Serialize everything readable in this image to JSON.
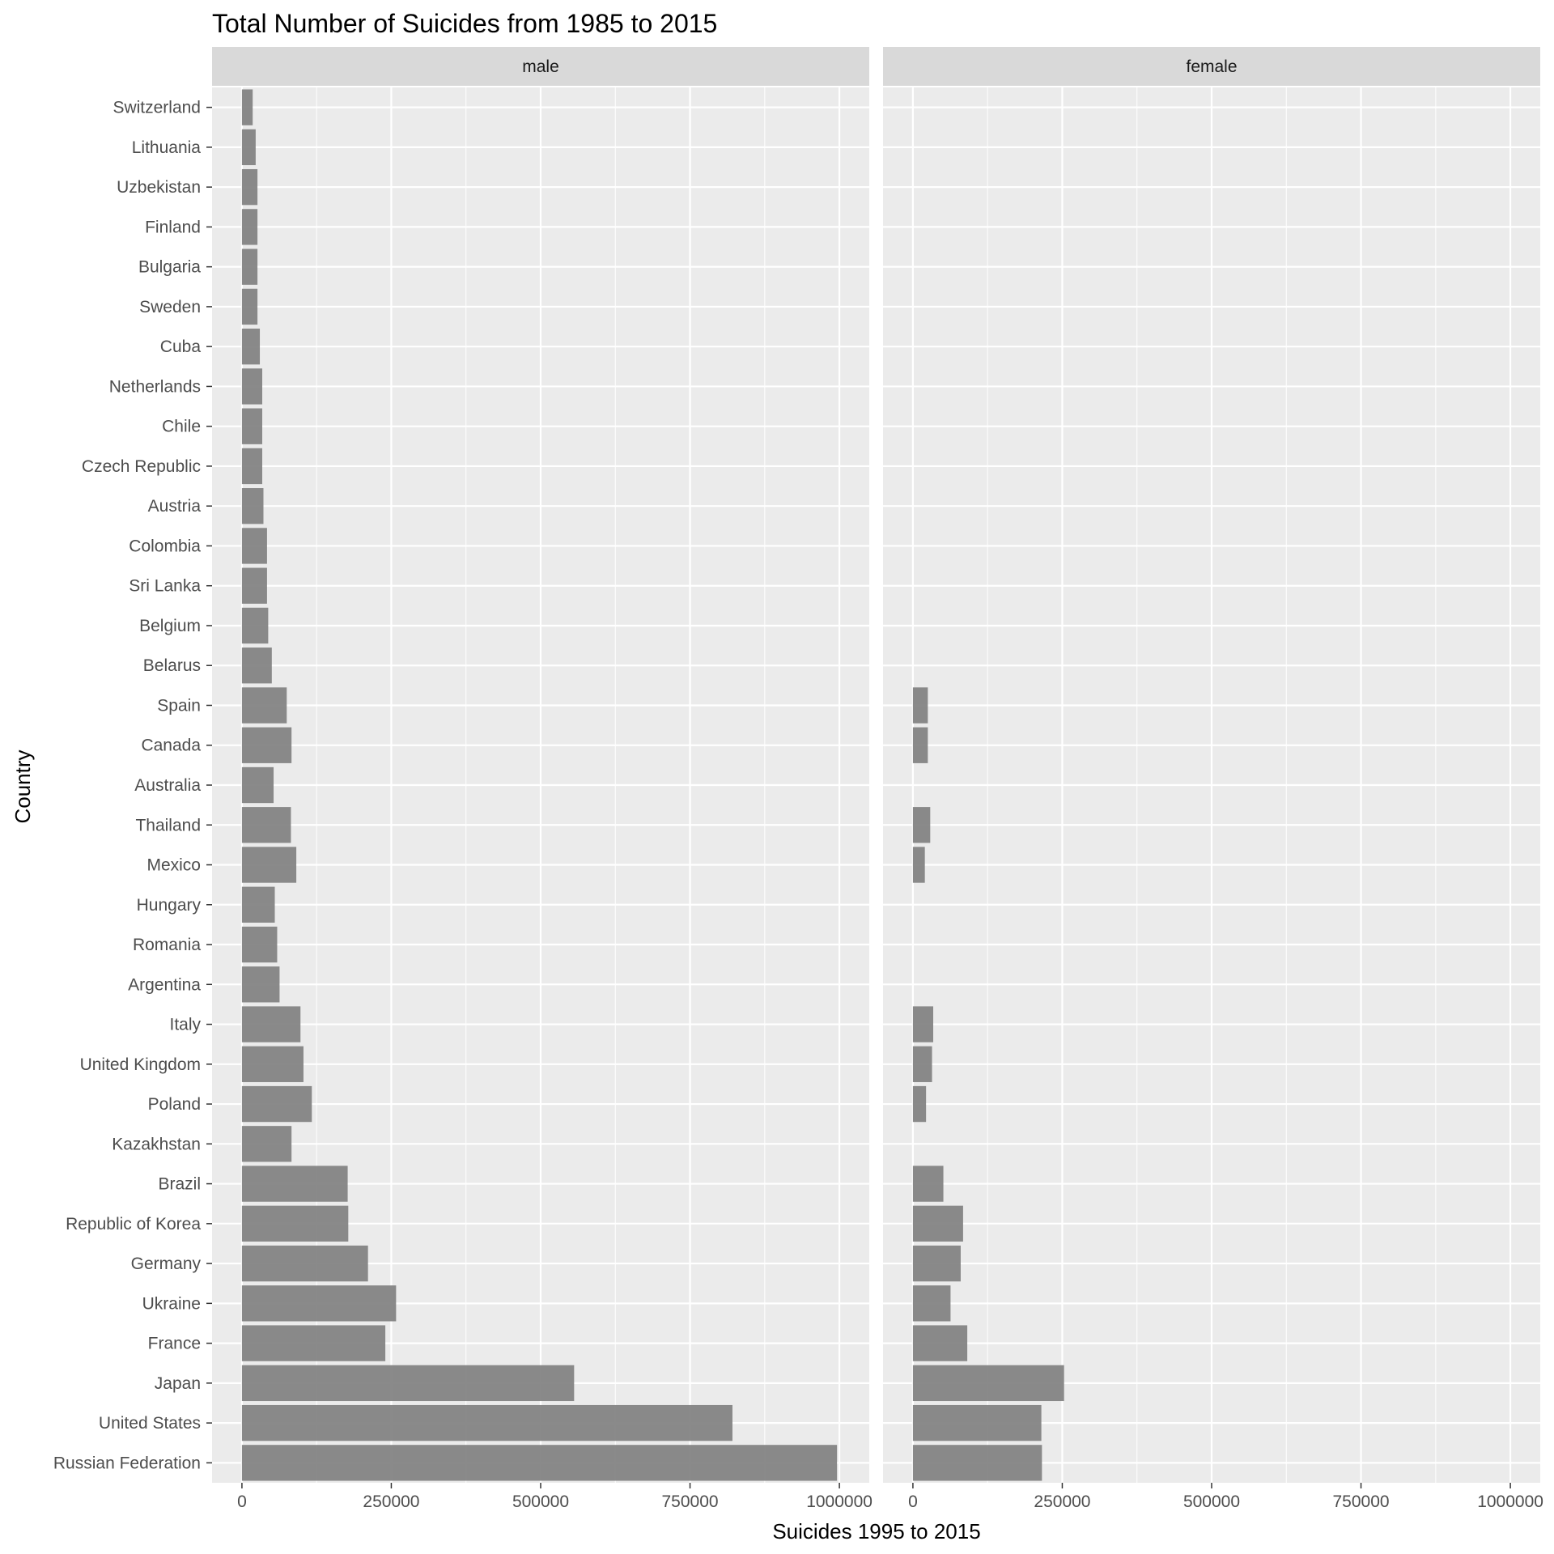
{
  "chart_data": {
    "type": "bar",
    "orientation": "horizontal",
    "title": "Total Number of Suicides from 1985 to 2015",
    "xlabel": "Suicides 1995 to 2015",
    "ylabel": "Country",
    "xlim": [
      -50000,
      1050000
    ],
    "x_ticks": [
      0,
      250000,
      500000,
      750000,
      1000000
    ],
    "x_tick_labels": [
      "0",
      "250000",
      "500000",
      "750000",
      "1000000"
    ],
    "grid": true,
    "categories": [
      "Switzerland",
      "Lithuania",
      "Uzbekistan",
      "Finland",
      "Bulgaria",
      "Sweden",
      "Cuba",
      "Netherlands",
      "Chile",
      "Czech Republic",
      "Austria",
      "Colombia",
      "Sri Lanka",
      "Belgium",
      "Belarus",
      "Spain",
      "Canada",
      "Australia",
      "Thailand",
      "Mexico",
      "Hungary",
      "Romania",
      "Argentina",
      "Italy",
      "United Kingdom",
      "Poland",
      "Kazakhstan",
      "Brazil",
      "Republic of Korea",
      "Germany",
      "Ukraine",
      "France",
      "Japan",
      "United States",
      "Russian Federation"
    ],
    "series": [
      {
        "name": "male",
        "values": [
          18000,
          23000,
          26000,
          26000,
          26000,
          26000,
          30000,
          34000,
          34000,
          34000,
          36000,
          42000,
          42000,
          44000,
          50000,
          75000,
          83000,
          53000,
          82000,
          91000,
          55000,
          59000,
          63000,
          98000,
          103000,
          117000,
          83000,
          177000,
          178000,
          211000,
          258000,
          240000,
          556000,
          821000,
          996000
        ]
      },
      {
        "name": "female",
        "values": [
          0,
          0,
          0,
          0,
          0,
          0,
          0,
          0,
          0,
          0,
          0,
          0,
          0,
          0,
          0,
          25000,
          25000,
          0,
          29000,
          20000,
          0,
          0,
          0,
          34000,
          32000,
          22000,
          0,
          51000,
          84000,
          80000,
          63000,
          91000,
          253000,
          215000,
          216000
        ]
      }
    ]
  }
}
